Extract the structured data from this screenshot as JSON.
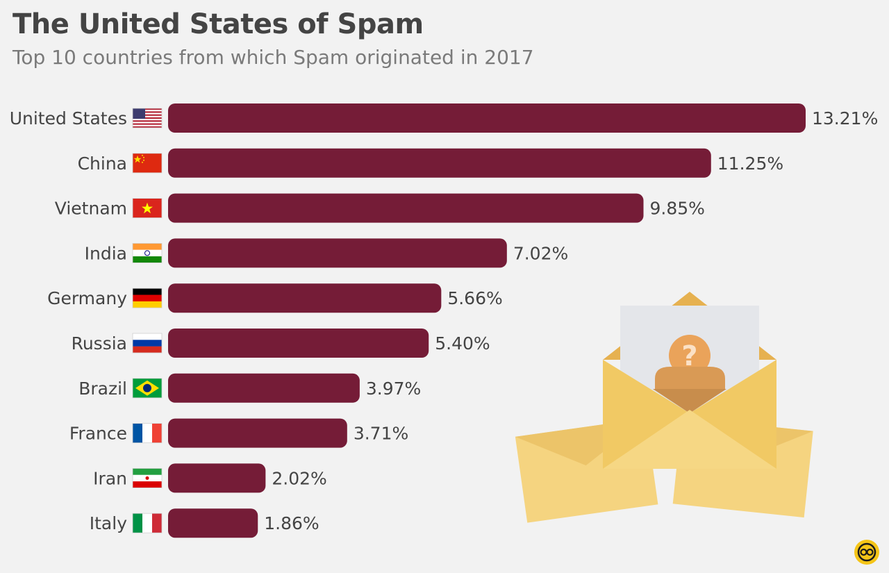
{
  "header": {
    "title": "The United States of Spam",
    "subtitle": "Top 10 countries from which Spam originated in 2017"
  },
  "colors": {
    "bar": "#751c37",
    "text": "#444444",
    "subtitle": "#7a7a7a",
    "background": "#f2f2f2",
    "envelope": "#f5d27a",
    "envelope_dark": "#e8b75a",
    "paper": "#e3e5e8",
    "question_circle": "#e9a45c"
  },
  "icons": [
    "flag-us-icon",
    "flag-cn-icon",
    "flag-vn-icon",
    "flag-in-icon",
    "flag-de-icon",
    "flag-ru-icon",
    "flag-br-icon",
    "flag-fr-icon",
    "flag-ir-icon",
    "flag-it-icon",
    "envelope-question-illustration",
    "statista-logo-icon"
  ],
  "chart_data": {
    "type": "bar",
    "orientation": "horizontal",
    "categories": [
      "United States",
      "China",
      "Vietnam",
      "India",
      "Germany",
      "Russia",
      "Brazil",
      "France",
      "Iran",
      "Italy"
    ],
    "flags": [
      "us",
      "cn",
      "vn",
      "in",
      "de",
      "ru",
      "br",
      "fr",
      "ir",
      "it"
    ],
    "values": [
      13.21,
      11.25,
      9.85,
      7.02,
      5.66,
      5.4,
      3.97,
      3.71,
      2.02,
      1.86
    ],
    "value_labels": [
      "13.21%",
      "11.25%",
      "9.85%",
      "7.02%",
      "5.66%",
      "5.40%",
      "3.97%",
      "3.71%",
      "2.02%",
      "1.86%"
    ],
    "unit": "%",
    "grid": false,
    "legend": "none"
  }
}
